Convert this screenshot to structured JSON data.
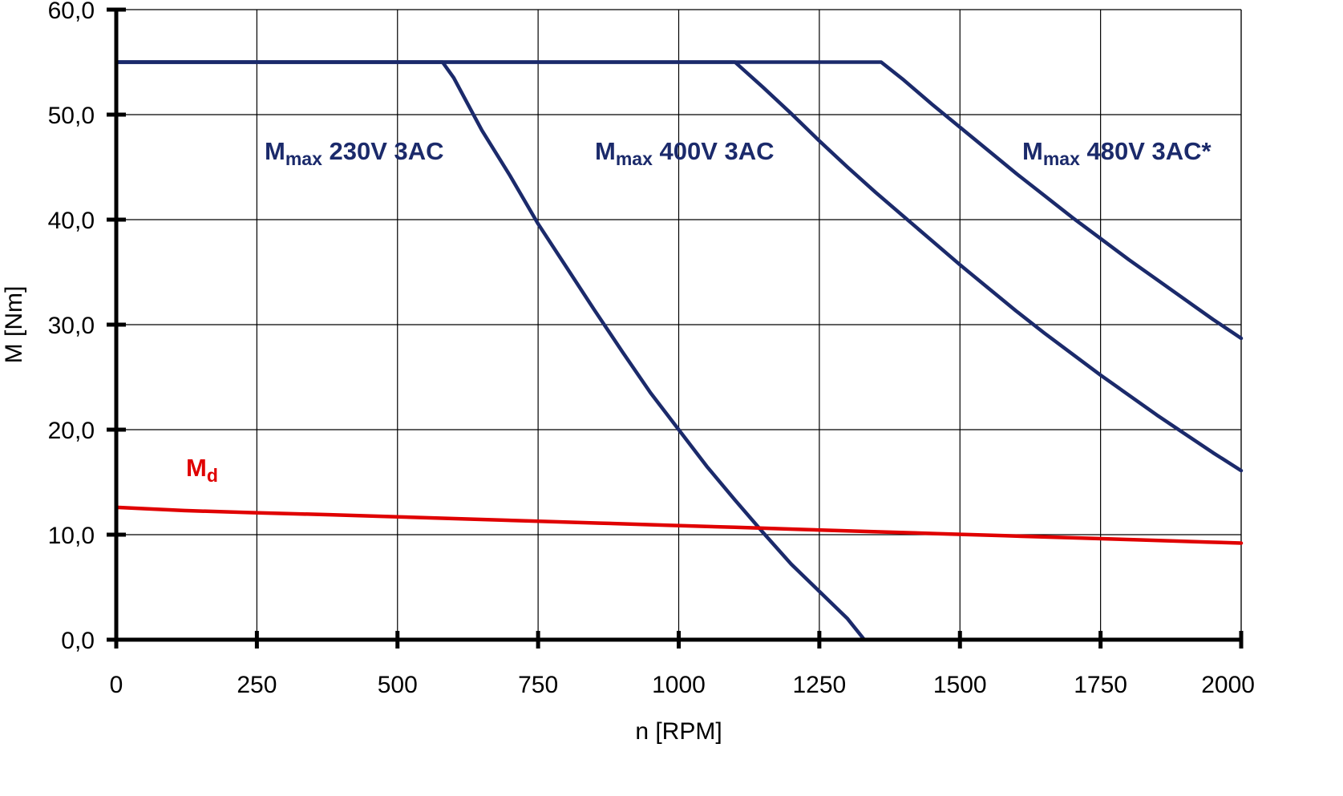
{
  "chart_data": {
    "type": "line",
    "xlabel": "n [RPM]",
    "ylabel": "M [Nm]",
    "xlim": [
      0,
      2000
    ],
    "ylim": [
      0,
      60
    ],
    "x_ticks": [
      "0",
      "250",
      "500",
      "750",
      "1000",
      "1250",
      "1500",
      "1750",
      "2000"
    ],
    "y_ticks": [
      "0,0",
      "10,0",
      "20,0",
      "30,0",
      "40,0",
      "50,0",
      "60,0"
    ],
    "grid": true,
    "colors": {
      "max": "#1b2a6b",
      "md": "#e00000",
      "grid": "#000000"
    },
    "series": [
      {
        "id": "mmax230",
        "label_main": "M",
        "label_sub": "max",
        "label_rest": " 230V 3AC",
        "color": "#1b2a6b",
        "x": [
          0,
          580,
          600,
          650,
          700,
          750,
          800,
          850,
          900,
          950,
          1000,
          1050,
          1100,
          1150,
          1200,
          1250,
          1300,
          1330
        ],
        "y": [
          55,
          55,
          53.5,
          48.5,
          44.2,
          39.6,
          35.5,
          31.4,
          27.4,
          23.5,
          20.0,
          16.5,
          13.3,
          10.2,
          7.2,
          4.6,
          2.0,
          0
        ]
      },
      {
        "id": "mmax400",
        "label_main": "M",
        "label_sub": "max",
        "label_rest": " 400V 3AC",
        "color": "#1b2a6b",
        "x": [
          0,
          1100,
          1150,
          1200,
          1250,
          1300,
          1350,
          1400,
          1450,
          1500,
          1550,
          1600,
          1650,
          1700,
          1750,
          1800,
          1850,
          1900,
          1950,
          2000
        ],
        "y": [
          55,
          55,
          52.6,
          50.1,
          47.5,
          45.0,
          42.6,
          40.3,
          38.0,
          35.7,
          33.5,
          31.3,
          29.2,
          27.2,
          25.2,
          23.3,
          21.4,
          19.6,
          17.8,
          16.1
        ]
      },
      {
        "id": "mmax480",
        "label_main": "M",
        "label_sub": "max",
        "label_rest": " 480V 3AC*",
        "color": "#1b2a6b",
        "x": [
          0,
          1360,
          1400,
          1450,
          1500,
          1550,
          1600,
          1650,
          1700,
          1750,
          1800,
          1850,
          1900,
          1950,
          2000
        ],
        "y": [
          55,
          55,
          53.3,
          51.0,
          48.8,
          46.6,
          44.4,
          42.3,
          40.2,
          38.2,
          36.2,
          34.3,
          32.4,
          30.5,
          28.7
        ]
      },
      {
        "id": "md",
        "label_main": "M",
        "label_sub": "d",
        "label_rest": "",
        "color": "#e00000",
        "x": [
          0,
          120,
          240,
          380,
          500,
          620,
          740,
          860,
          980,
          1100,
          1220,
          1340,
          1460,
          1580,
          1700,
          1820,
          1940,
          2000
        ],
        "y": [
          12.6,
          12.3,
          12.1,
          11.9,
          11.7,
          11.5,
          11.3,
          11.1,
          10.9,
          10.7,
          10.5,
          10.3,
          10.1,
          9.9,
          9.7,
          9.5,
          9.3,
          9.2
        ]
      }
    ]
  }
}
